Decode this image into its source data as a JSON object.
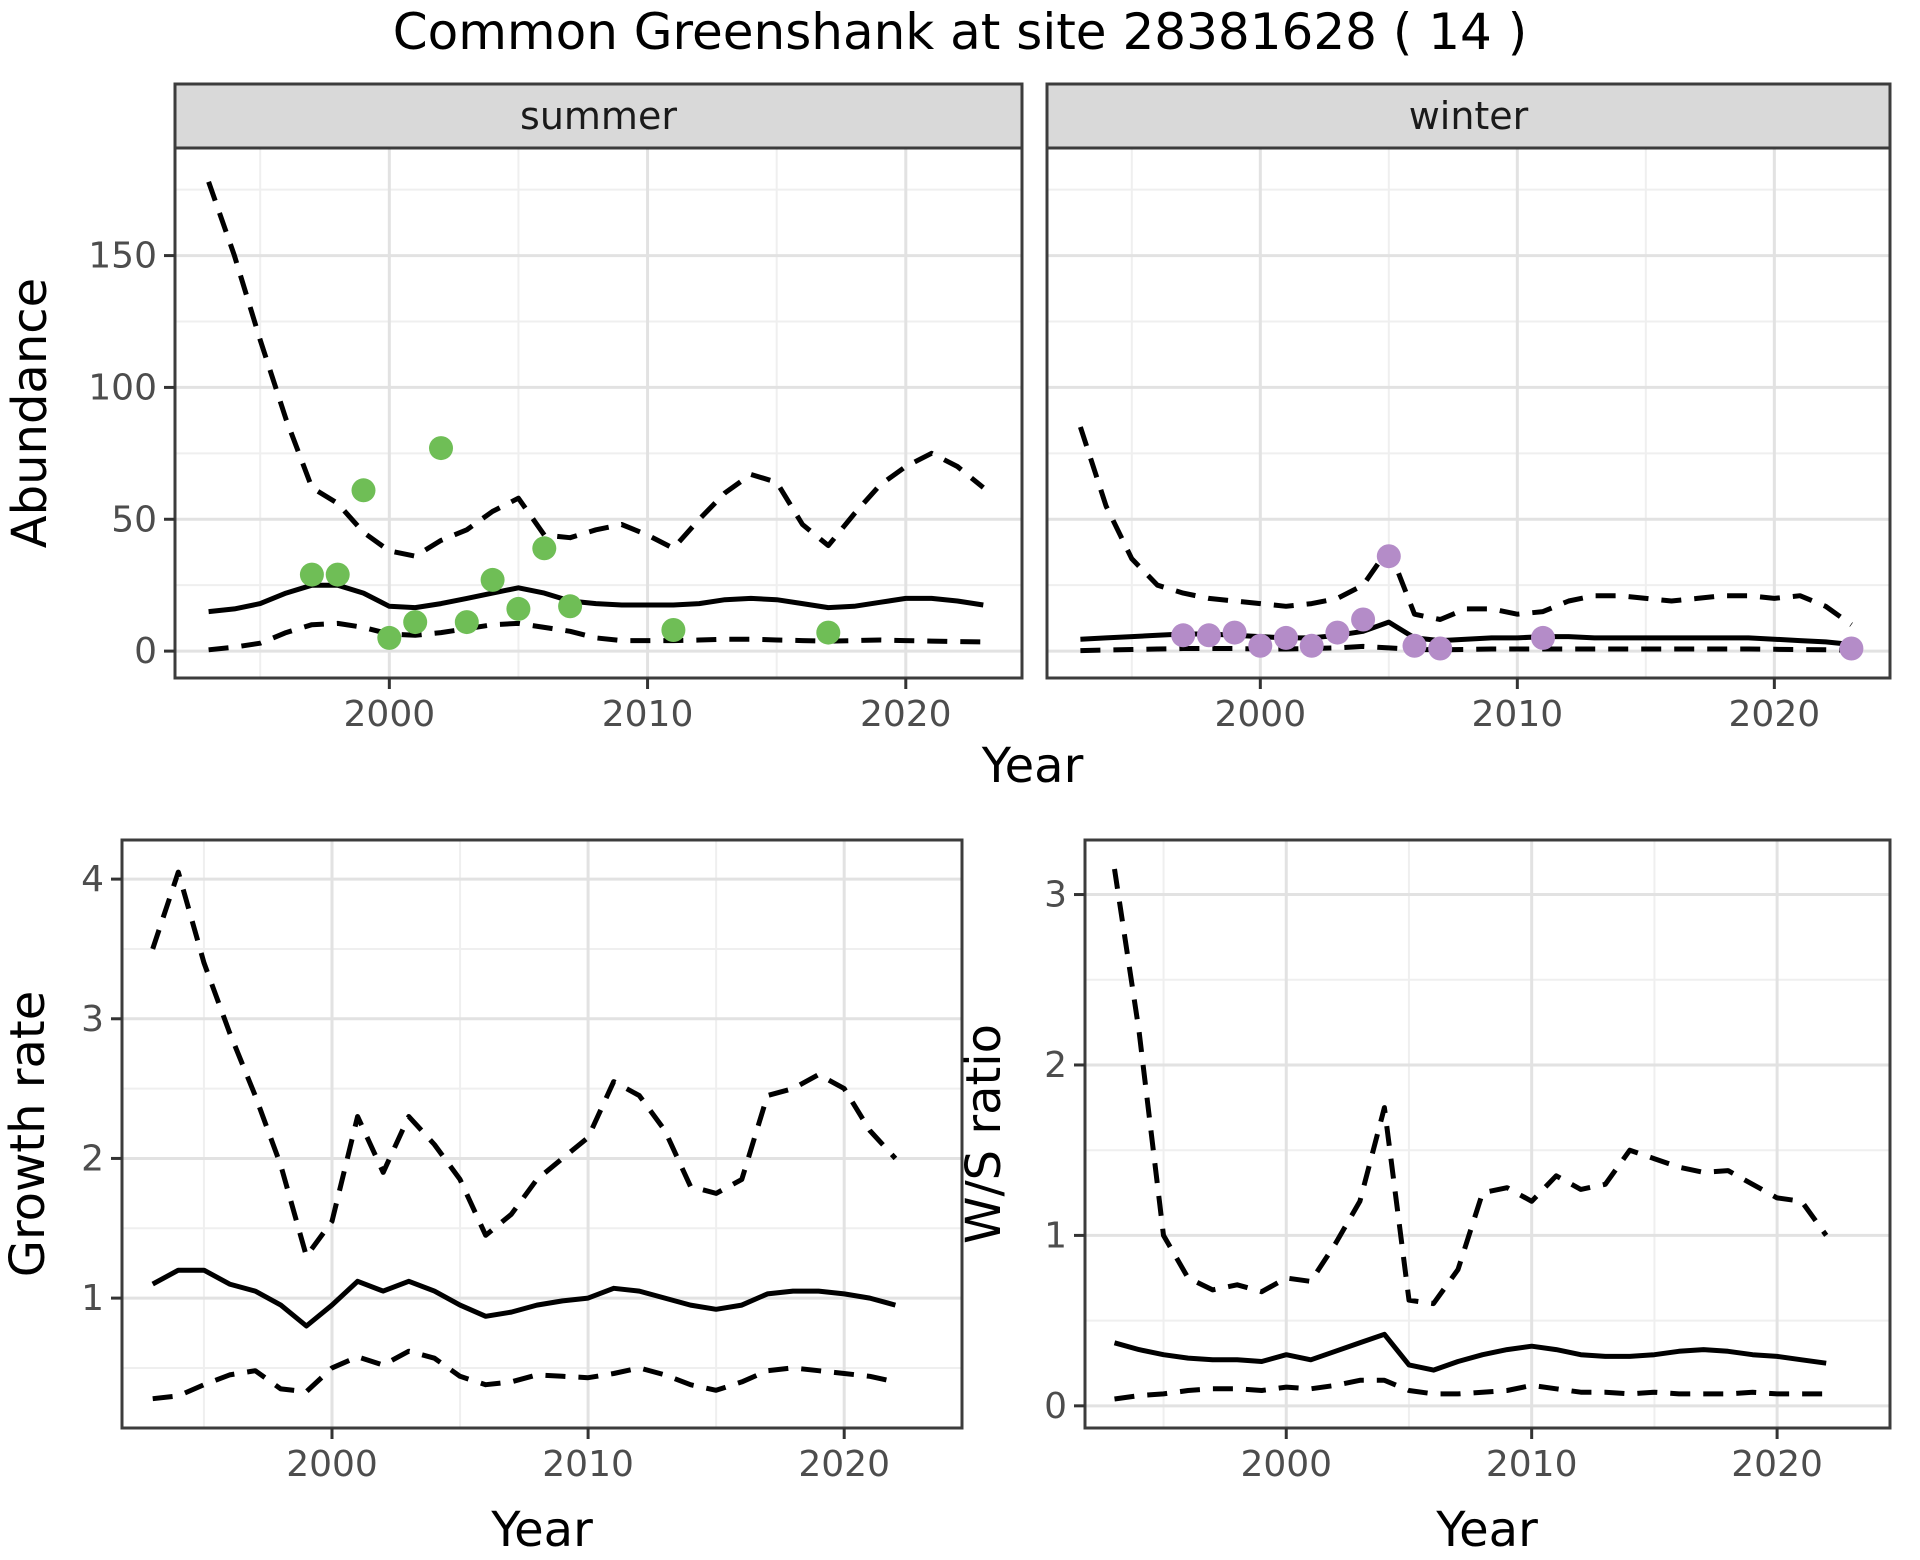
{
  "title": "Common Greenshank at site 28381628 ( 14 )",
  "labels": {
    "year": "Year",
    "abundance": "Abundance",
    "growth_rate": "Growth rate",
    "ws_ratio": "W/S ratio"
  },
  "facets": {
    "summer": "summer",
    "winter": "winter"
  },
  "colors": {
    "summer_points": "#6fbe56",
    "winter_points": "#b48cc8",
    "line": "#000000",
    "strip_fill": "#d9d9d9",
    "strip_border": "#3c3c3c",
    "panel_border": "#3c3c3c",
    "panel_bg": "#ffffff",
    "grid_major": "#e2e2e2",
    "grid_minor": "#efefef",
    "tick_mark": "#333333",
    "tick_text": "#4d4d4d",
    "title_text": "#000000"
  },
  "chart_data": [
    {
      "id": "abundance-summer",
      "type": "line",
      "facet": "summer",
      "xlabel": "Year",
      "ylabel": "Abundance",
      "xlim": [
        1991.7,
        2024.5
      ],
      "ylim": [
        -10.2,
        190.8
      ],
      "x_ticks": [
        2000,
        2010,
        2020
      ],
      "x_minor": [
        1995,
        2005,
        2015
      ],
      "y_ticks": [
        0,
        50,
        100,
        150
      ],
      "y_minor": [
        25,
        75,
        125,
        175
      ],
      "years": [
        1993,
        1994,
        1995,
        1996,
        1997,
        1998,
        1999,
        2000,
        2001,
        2002,
        2003,
        2004,
        2005,
        2006,
        2007,
        2008,
        2009,
        2010,
        2011,
        2012,
        2013,
        2014,
        2015,
        2016,
        2017,
        2018,
        2019,
        2020,
        2021,
        2022,
        2023
      ],
      "series": [
        {
          "name": "upper-ci",
          "style": "dashed",
          "values": [
            178,
            150,
            118,
            88,
            62,
            56,
            45,
            38,
            36,
            42,
            46,
            53,
            58,
            44,
            43,
            46,
            48,
            44,
            39,
            50,
            60,
            67,
            64,
            48,
            40,
            52,
            63,
            70,
            75,
            70,
            62
          ]
        },
        {
          "name": "mean",
          "style": "solid",
          "values": [
            15,
            16,
            18,
            22,
            25,
            25,
            22,
            17,
            16.5,
            18,
            20,
            22,
            24,
            22,
            19,
            18,
            17.5,
            17.5,
            17.5,
            18,
            19.5,
            20,
            19.5,
            18,
            16.5,
            17,
            18.5,
            20,
            20,
            19,
            17.5
          ]
        },
        {
          "name": "lower-ci",
          "style": "dashed",
          "values": [
            0.5,
            1.5,
            3,
            7,
            10,
            10.5,
            9,
            6.5,
            6,
            7,
            8.5,
            10,
            10.5,
            9,
            7.5,
            5,
            4,
            4,
            4,
            4.2,
            4.5,
            4.5,
            4.2,
            4,
            3.8,
            4,
            4.2,
            4,
            3.8,
            3.6,
            3.5
          ]
        }
      ],
      "points": {
        "name": "observed-counts-summer",
        "color_key": "summer_points",
        "years": [
          1997,
          1998,
          1999,
          2000,
          2001,
          2002,
          2003,
          2004,
          2005,
          2006,
          2007,
          2011,
          2017
        ],
        "values": [
          29,
          29,
          61,
          5,
          11,
          77,
          11,
          27,
          16,
          39,
          17,
          8,
          7
        ]
      }
    },
    {
      "id": "abundance-winter",
      "type": "line",
      "facet": "winter",
      "xlabel": "Year",
      "ylabel": "",
      "xlim": [
        1991.7,
        2024.5
      ],
      "ylim": [
        -10.2,
        190.8
      ],
      "x_ticks": [
        2000,
        2010,
        2020
      ],
      "x_minor": [
        1995,
        2005,
        2015
      ],
      "y_ticks": [
        0,
        50,
        100,
        150
      ],
      "y_minor": [
        25,
        75,
        125,
        175
      ],
      "years": [
        1993,
        1994,
        1995,
        1996,
        1997,
        1998,
        1999,
        2000,
        2001,
        2002,
        2003,
        2004,
        2005,
        2006,
        2007,
        2008,
        2009,
        2010,
        2011,
        2012,
        2013,
        2014,
        2015,
        2016,
        2017,
        2018,
        2019,
        2020,
        2021,
        2022,
        2023
      ],
      "series": [
        {
          "name": "upper-ci",
          "style": "dashed",
          "values": [
            85,
            55,
            35,
            25,
            22,
            20,
            19,
            18,
            17,
            18,
            20,
            25,
            39,
            14,
            12,
            16,
            16,
            14,
            15,
            19,
            21,
            21,
            20,
            19,
            20,
            21,
            21,
            20,
            21,
            17,
            10
          ]
        },
        {
          "name": "mean",
          "style": "solid",
          "values": [
            4.5,
            5,
            5.5,
            6,
            6.5,
            6.5,
            6,
            5.5,
            5,
            5,
            6,
            7.5,
            11,
            5,
            4,
            4.5,
            5,
            5,
            5.5,
            5.5,
            5,
            5,
            5,
            5,
            5,
            5,
            5,
            4.5,
            4,
            3.5,
            2.5
          ]
        },
        {
          "name": "lower-ci",
          "style": "dashed",
          "values": [
            0.2,
            0.4,
            0.6,
            0.8,
            1,
            1,
            1,
            0.8,
            0.8,
            1,
            1.2,
            1.8,
            1.2,
            0.6,
            0.5,
            0.6,
            0.8,
            0.8,
            0.8,
            0.8,
            0.8,
            0.8,
            0.8,
            0.8,
            0.8,
            0.8,
            0.8,
            0.7,
            0.6,
            0.5,
            0.3
          ]
        }
      ],
      "points": {
        "name": "observed-counts-winter",
        "color_key": "winter_points",
        "years": [
          1997,
          1998,
          1999,
          2000,
          2001,
          2002,
          2003,
          2004,
          2005,
          2006,
          2007,
          2011,
          2023
        ],
        "values": [
          6,
          6,
          7,
          2,
          5,
          2,
          7,
          12,
          36,
          2,
          1,
          5,
          1
        ]
      }
    },
    {
      "id": "growth-rate",
      "type": "line",
      "facet": "",
      "xlabel": "Year",
      "ylabel": "Growth rate",
      "xlim": [
        1991.8,
        2024.6
      ],
      "ylim": [
        0.07,
        4.28
      ],
      "x_ticks": [
        2000,
        2010,
        2020
      ],
      "x_minor": [
        1995,
        2005,
        2015
      ],
      "y_ticks": [
        1,
        2,
        3,
        4
      ],
      "y_minor": [
        0.5,
        1.5,
        2.5,
        3.5
      ],
      "years": [
        1993,
        1994,
        1995,
        1996,
        1997,
        1998,
        1999,
        2000,
        2001,
        2002,
        2003,
        2004,
        2005,
        2006,
        2007,
        2008,
        2009,
        2010,
        2011,
        2012,
        2013,
        2014,
        2015,
        2016,
        2017,
        2018,
        2019,
        2020,
        2021,
        2022
      ],
      "series": [
        {
          "name": "upper-ci",
          "style": "dashed",
          "values": [
            3.5,
            4.05,
            3.4,
            2.9,
            2.45,
            1.95,
            1.3,
            1.55,
            2.3,
            1.9,
            2.3,
            2.1,
            1.85,
            1.45,
            1.6,
            1.85,
            2.0,
            2.15,
            2.55,
            2.45,
            2.2,
            1.8,
            1.75,
            1.85,
            2.45,
            2.5,
            2.6,
            2.5,
            2.2,
            2.0
          ]
        },
        {
          "name": "mean",
          "style": "solid",
          "values": [
            1.1,
            1.2,
            1.2,
            1.1,
            1.05,
            0.95,
            0.8,
            0.95,
            1.12,
            1.05,
            1.12,
            1.05,
            0.95,
            0.87,
            0.9,
            0.95,
            0.98,
            1.0,
            1.07,
            1.05,
            1.0,
            0.95,
            0.92,
            0.95,
            1.03,
            1.05,
            1.05,
            1.03,
            1.0,
            0.95
          ]
        },
        {
          "name": "lower-ci",
          "style": "dashed",
          "values": [
            0.28,
            0.3,
            0.38,
            0.45,
            0.48,
            0.35,
            0.33,
            0.5,
            0.58,
            0.52,
            0.62,
            0.57,
            0.44,
            0.38,
            0.4,
            0.45,
            0.44,
            0.43,
            0.46,
            0.5,
            0.45,
            0.38,
            0.34,
            0.4,
            0.48,
            0.5,
            0.48,
            0.46,
            0.44,
            0.4
          ]
        }
      ],
      "points": null
    },
    {
      "id": "ws-ratio",
      "type": "line",
      "facet": "",
      "xlabel": "Year",
      "ylabel": "W/S ratio",
      "xlim": [
        1991.8,
        2024.6
      ],
      "ylim": [
        -0.13,
        3.32
      ],
      "x_ticks": [
        2000,
        2010,
        2020
      ],
      "x_minor": [
        1995,
        2005,
        2015
      ],
      "y_ticks": [
        0,
        1,
        2,
        3
      ],
      "y_minor": [
        0.5,
        1.5,
        2.5
      ],
      "years": [
        1993,
        1994,
        1995,
        1996,
        1997,
        1998,
        1999,
        2000,
        2001,
        2002,
        2003,
        2004,
        2005,
        2006,
        2007,
        2008,
        2009,
        2010,
        2011,
        2012,
        2013,
        2014,
        2015,
        2016,
        2017,
        2018,
        2019,
        2020,
        2021,
        2022
      ],
      "series": [
        {
          "name": "upper-ci",
          "style": "dashed",
          "values": [
            3.15,
            2.2,
            1.0,
            0.75,
            0.68,
            0.71,
            0.67,
            0.75,
            0.73,
            0.95,
            1.2,
            1.75,
            0.62,
            0.6,
            0.8,
            1.25,
            1.28,
            1.2,
            1.35,
            1.27,
            1.3,
            1.5,
            1.45,
            1.4,
            1.37,
            1.38,
            1.3,
            1.22,
            1.2,
            1.0
          ]
        },
        {
          "name": "mean",
          "style": "solid",
          "values": [
            0.37,
            0.33,
            0.3,
            0.28,
            0.27,
            0.27,
            0.26,
            0.3,
            0.27,
            0.32,
            0.37,
            0.42,
            0.24,
            0.21,
            0.26,
            0.3,
            0.33,
            0.35,
            0.33,
            0.3,
            0.29,
            0.29,
            0.3,
            0.32,
            0.33,
            0.32,
            0.3,
            0.29,
            0.27,
            0.25
          ]
        },
        {
          "name": "lower-ci",
          "style": "dashed",
          "values": [
            0.04,
            0.06,
            0.07,
            0.09,
            0.1,
            0.1,
            0.09,
            0.11,
            0.1,
            0.12,
            0.15,
            0.15,
            0.09,
            0.07,
            0.07,
            0.08,
            0.09,
            0.12,
            0.1,
            0.08,
            0.08,
            0.07,
            0.08,
            0.07,
            0.07,
            0.07,
            0.08,
            0.07,
            0.07,
            0.07
          ]
        }
      ],
      "points": null
    }
  ]
}
